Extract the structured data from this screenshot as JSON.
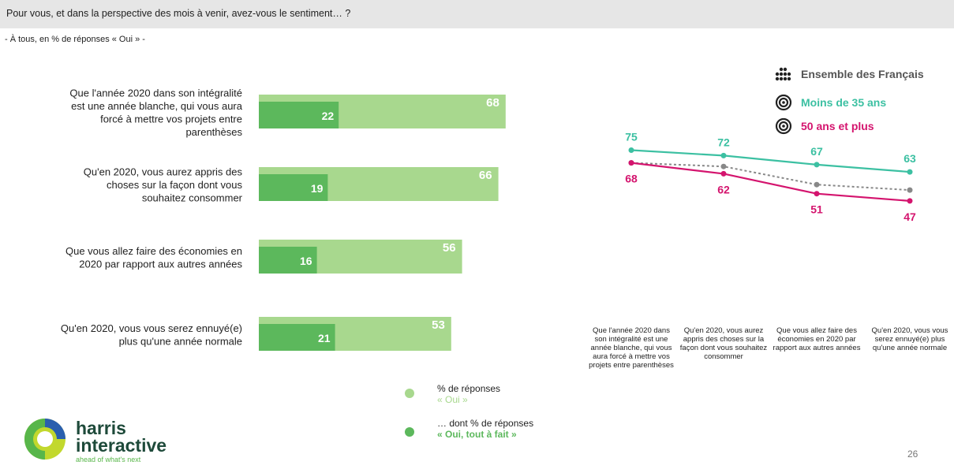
{
  "header": {
    "question": "Pour vous, et dans la perspective des mois à venir, avez-vous le sentiment… ?",
    "subtitle": "- À tous, en % de réponses « Oui » -"
  },
  "chart_data": [
    {
      "type": "bar",
      "categories": [
        [
          "Que l'année 2020 dans son intégralité",
          "est une année blanche, qui vous aura",
          "forcé à mettre vos projets entre",
          "parenthèses"
        ],
        [
          "Qu'en 2020, vous aurez appris des",
          "choses sur la façon dont vous",
          "souhaitez consommer"
        ],
        [
          "Que vous allez faire des économies en",
          "2020 par rapport aux autres années"
        ],
        [
          "Qu'en 2020, vous vous serez ennuyé(e)",
          "plus qu'une année normale"
        ]
      ],
      "series": [
        {
          "name": "% de réponses « Oui »",
          "values": [
            68,
            66,
            56,
            53
          ],
          "color": "#a8d88e"
        },
        {
          "name": "… dont % de réponses « Oui, tout à fait »",
          "values": [
            22,
            19,
            16,
            21
          ],
          "color": "#5cb85c"
        }
      ],
      "legend": {
        "items": [
          {
            "line1": "% de réponses",
            "line2": "« Oui »",
            "color": "#a8d88e",
            "text_color": "#a8d88e"
          },
          {
            "line1": "… dont % de réponses",
            "line2": "« Oui, tout à fait »",
            "color": "#5cb85c",
            "text_color": "#5cb85c"
          }
        ]
      }
    },
    {
      "type": "line",
      "categories": [
        [
          "Que l'année 2020 dans",
          "son intégralité est une",
          "année blanche, qui vous",
          "aura forcé à mettre vos",
          "projets entre parenthèses"
        ],
        [
          "Qu'en 2020, vous aurez",
          "appris des choses sur la",
          "façon dont vous souhaitez",
          "consommer"
        ],
        [
          "Que vous allez faire des",
          "économies en 2020 par",
          "rapport aux autres années"
        ],
        [
          "Qu'en 2020, vous vous",
          "serez ennuyé(e) plus",
          "qu'une année normale"
        ]
      ],
      "series": [
        {
          "name": "Ensemble des Français",
          "values": [
            68,
            66,
            56,
            53
          ],
          "color": "#888888",
          "dashed": true,
          "show_labels": false
        },
        {
          "name": "Moins de 35 ans",
          "values": [
            75,
            72,
            67,
            63
          ],
          "color": "#3cc0a2",
          "show_labels": true,
          "label_pos": "above"
        },
        {
          "name": "50 ans et plus",
          "values": [
            68,
            62,
            51,
            47
          ],
          "color": "#d4146e",
          "show_labels": true,
          "label_pos": "below"
        }
      ],
      "legend_placement": "top-right",
      "legend_colors": [
        "#555555",
        "#3cc0a2",
        "#d4146e"
      ]
    }
  ],
  "logo": {
    "name1": "harris",
    "name2": "interactive",
    "tagline": "ahead of what's next",
    "colors": {
      "green": "#58b64a",
      "lime": "#c2d82d",
      "blue": "#2a5fae",
      "dark": "#1e4a3a"
    }
  },
  "footer": {
    "page_number": "26"
  }
}
